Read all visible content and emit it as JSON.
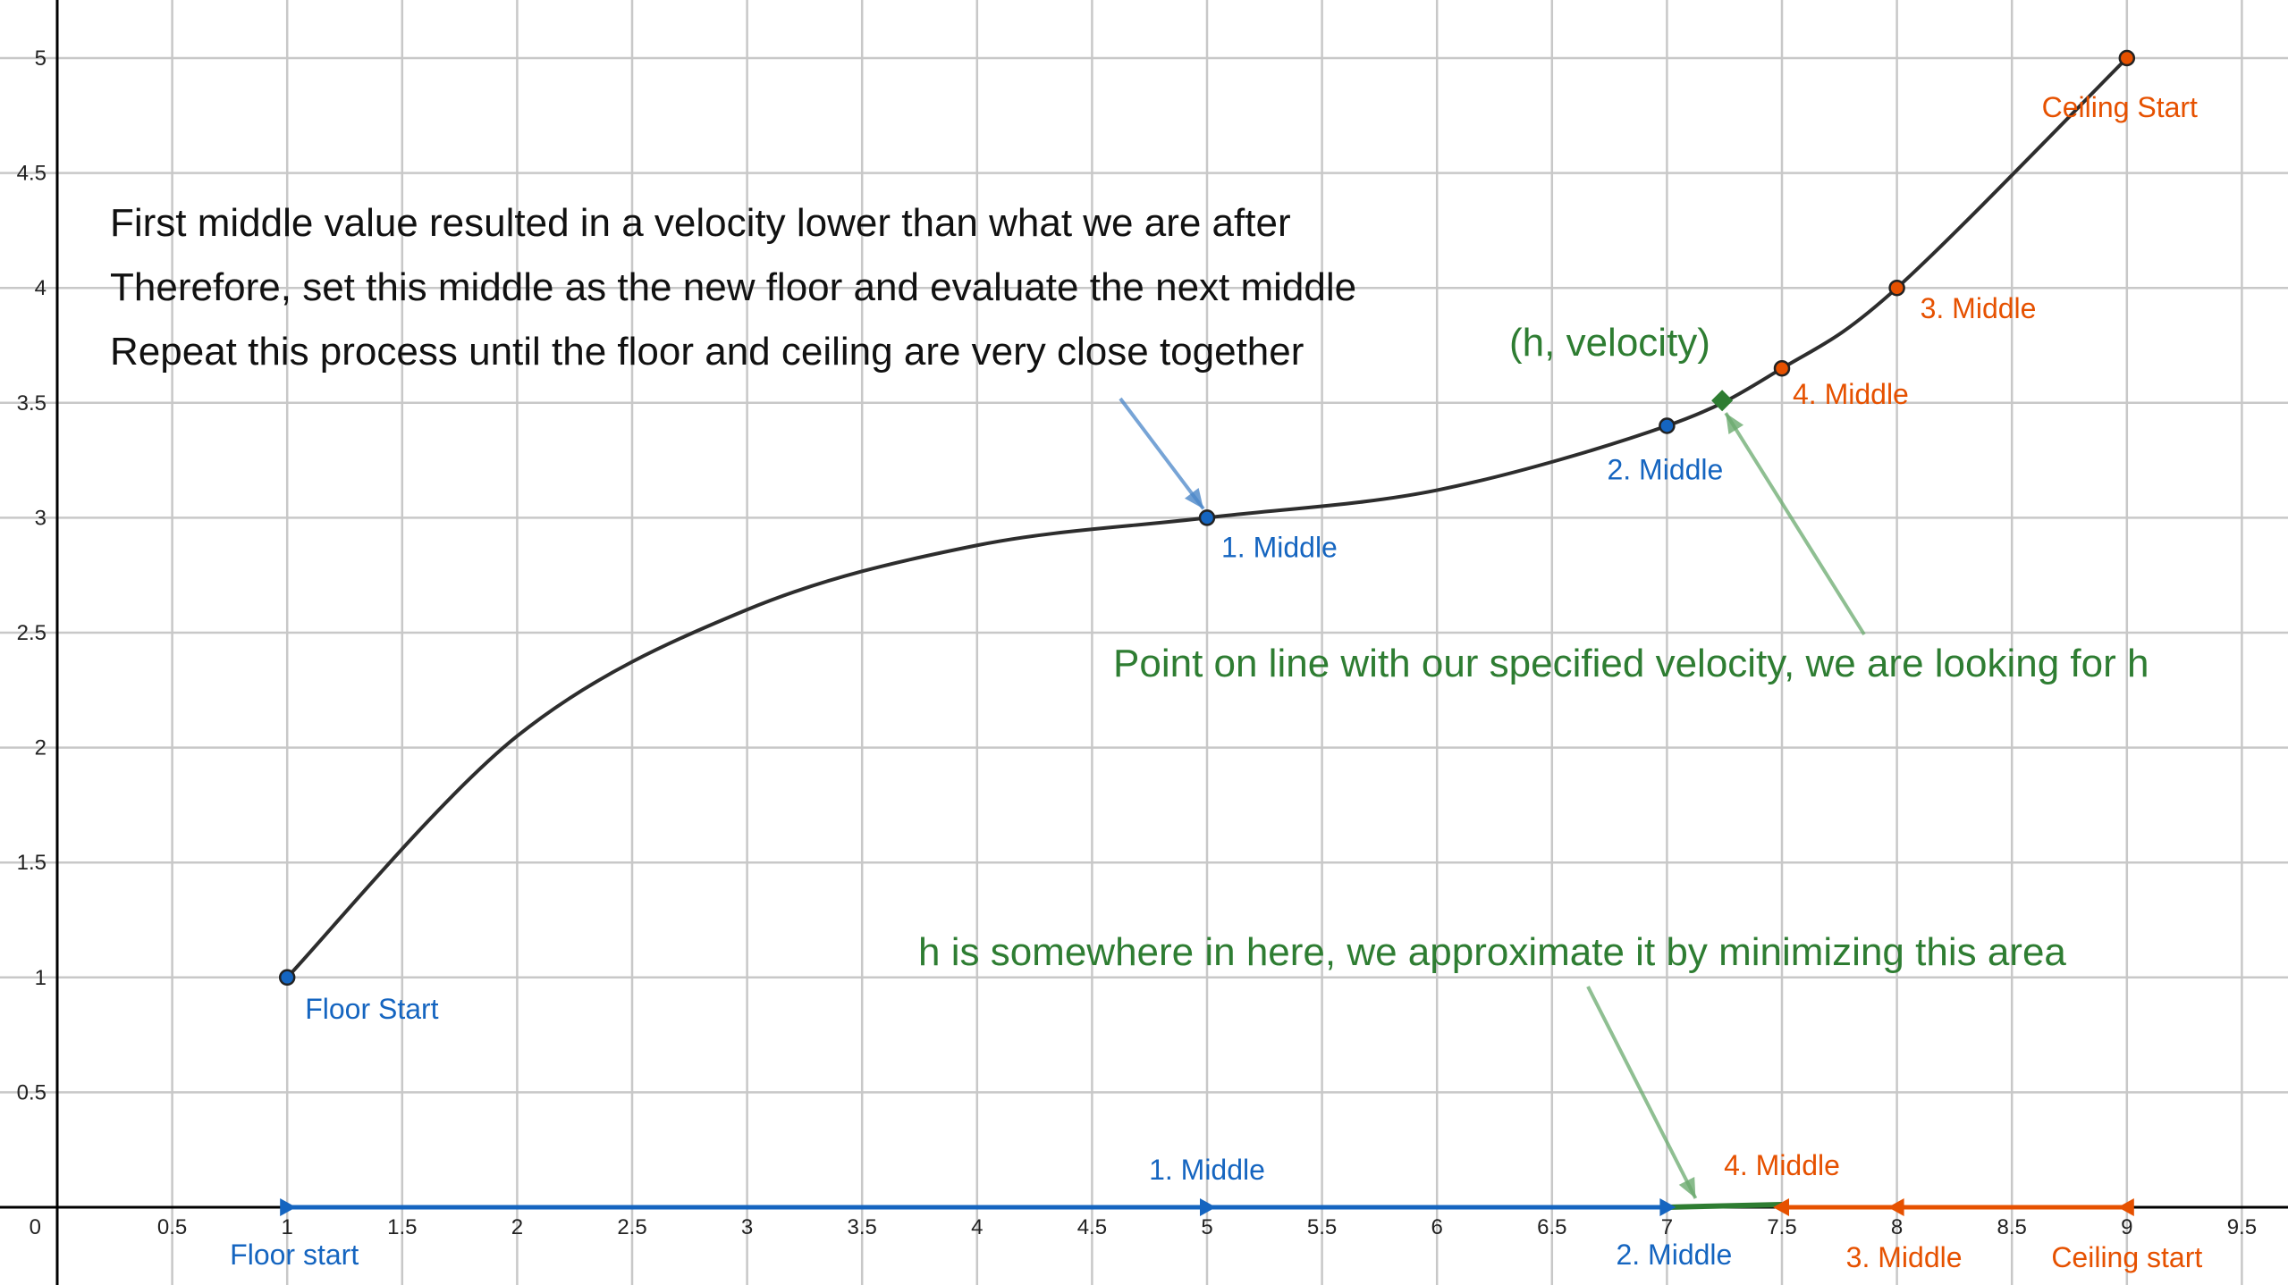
{
  "colors": {
    "curve": "#2d2d2d",
    "floor": "#1565c0",
    "ceiling": "#e65100",
    "target": "#2e7d32",
    "grid": "#c8c8c8",
    "axis": "#000000"
  },
  "chart_data": {
    "type": "line",
    "grid": true,
    "xlim": [
      -0.25,
      9.7
    ],
    "ylim": [
      -0.35,
      5.25
    ],
    "x_ticks": [
      "0.5",
      "1",
      "1.5",
      "2",
      "2.5",
      "3",
      "3.5",
      "4",
      "4.5",
      "5",
      "5.5",
      "6",
      "6.5",
      "7",
      "7.5",
      "8",
      "8.5",
      "9",
      "9.5"
    ],
    "y_ticks": [
      "0.5",
      "1",
      "1.5",
      "2",
      "2.5",
      "3",
      "3.5",
      "4",
      "4.5",
      "5"
    ],
    "origin_label": "0",
    "curve_points": [
      [
        1,
        1
      ],
      [
        2,
        2.05
      ],
      [
        3,
        2.6
      ],
      [
        4,
        2.88
      ],
      [
        5,
        3.0
      ],
      [
        6,
        3.12
      ],
      [
        7,
        3.4
      ],
      [
        7.5,
        3.65
      ],
      [
        8,
        4.0
      ],
      [
        9,
        5.0
      ]
    ],
    "curve_points_labels": [
      {
        "x": 1,
        "y": 1,
        "label": "Floor Start",
        "group": "floor"
      },
      {
        "x": 5,
        "y": 3,
        "label": "1. Middle",
        "group": "floor"
      },
      {
        "x": 7,
        "y": 3.4,
        "label": "2. Middle",
        "group": "floor"
      },
      {
        "x": 7.5,
        "y": 3.65,
        "label": "4. Middle",
        "group": "ceiling"
      },
      {
        "x": 8,
        "y": 4,
        "label": "3. Middle",
        "group": "ceiling"
      },
      {
        "x": 9,
        "y": 5,
        "label": "Ceiling Start",
        "group": "ceiling"
      }
    ],
    "target_point": {
      "x": 7.24,
      "y": 3.51,
      "label": "(h, velocity)"
    },
    "axis_markers": [
      {
        "x": 1,
        "label": "Floor start",
        "group": "floor"
      },
      {
        "x": 5,
        "label": "1. Middle",
        "group": "floor"
      },
      {
        "x": 7,
        "label": "2. Middle",
        "group": "floor"
      },
      {
        "x": 7.5,
        "label": "4. Middle",
        "group": "ceiling"
      },
      {
        "x": 8,
        "label": "3. Middle",
        "group": "ceiling"
      },
      {
        "x": 9,
        "label": "Ceiling start",
        "group": "ceiling"
      }
    ],
    "annotations": [
      "First middle value resulted in a velocity lower than what we are after",
      "Therefore, set this middle as the new floor and evaluate the next middle",
      "Repeat this process until the floor and ceiling are very close together"
    ],
    "target_note": "Point on line with our specified velocity, we are looking for h",
    "area_note": "h is somewhere in here, we approximate it by minimizing this area"
  }
}
